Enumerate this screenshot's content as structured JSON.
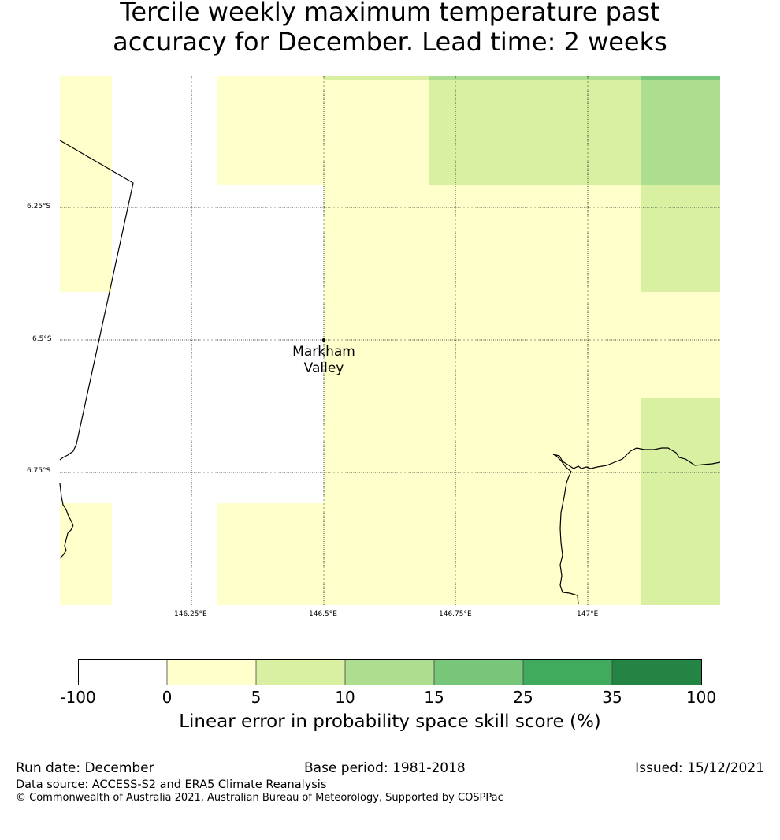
{
  "title": {
    "line1": "Tercile weekly maximum temperature past",
    "line2": "accuracy for December. Lead time: 2 weeks"
  },
  "map": {
    "location_label_line1": "Markham",
    "location_label_line2": "Valley",
    "lat_labels": [
      "6.25°S",
      "6.5°S",
      "6.75°S"
    ],
    "lon_labels": [
      "146.25°E",
      "146.5°E",
      "146.75°E",
      "147°E"
    ],
    "colors": {
      "white": "#ffffff",
      "c0_5": "#ffffcc",
      "c5_10": "#d9f0a3",
      "c10_15": "#addd8e",
      "c15_25": "#78c679",
      "c25_35": "#41ab5d",
      "c35_100": "#238443"
    }
  },
  "colorbar": {
    "ticks": [
      "-100",
      "0",
      "5",
      "10",
      "15",
      "25",
      "35",
      "100"
    ],
    "colors": [
      "#ffffff",
      "#ffffcc",
      "#d9f0a3",
      "#addd8e",
      "#78c679",
      "#41ab5d",
      "#238443"
    ],
    "label": "Linear error in probability space skill score (%)"
  },
  "footer": {
    "run_date": "Run date: December",
    "base_period": "Base period: 1981-2018",
    "issued": "Issued: 15/12/2021",
    "data_source": "Data source: ACCESS-S2 and ERA5 Climate Reanalysis",
    "copyright": "© Commonwealth of Australia 2021, Australian Bureau of Meteorology, Supported by COSPPac"
  }
}
